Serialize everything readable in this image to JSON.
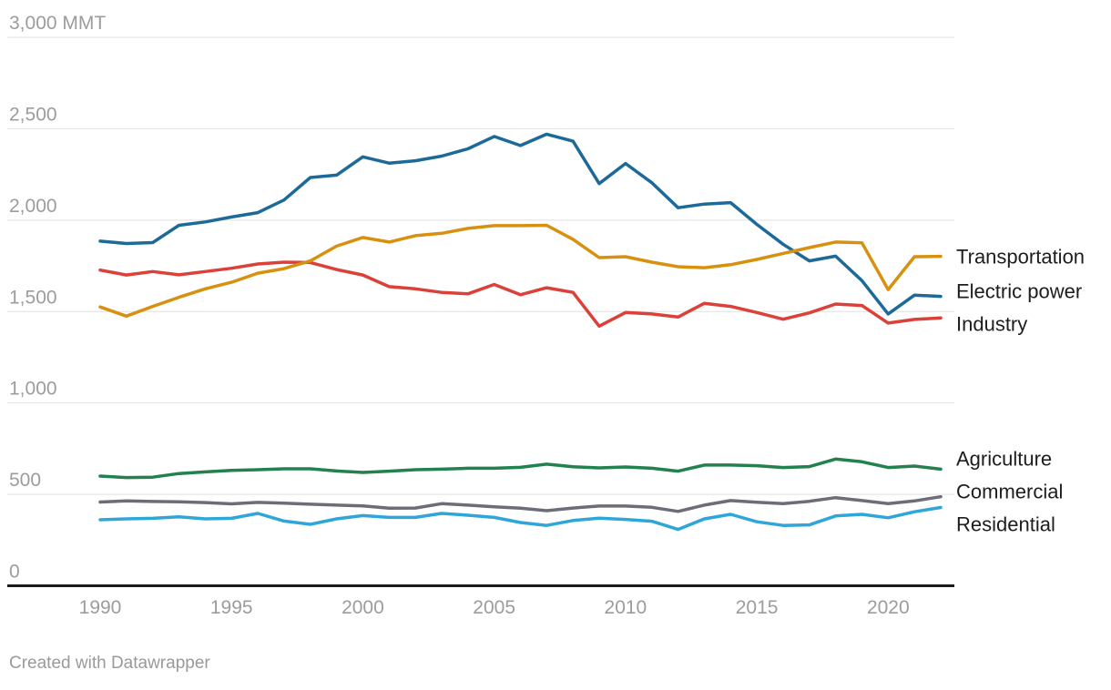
{
  "chart_data": {
    "type": "line",
    "title": "",
    "unit": "MMT",
    "grid": true,
    "legend_position": "right",
    "ylim": [
      0,
      3000
    ],
    "x": [
      1990,
      1991,
      1992,
      1993,
      1994,
      1995,
      1996,
      1997,
      1998,
      1999,
      2000,
      2001,
      2002,
      2003,
      2004,
      2005,
      2006,
      2007,
      2008,
      2009,
      2010,
      2011,
      2012,
      2013,
      2014,
      2015,
      2016,
      2017,
      2018,
      2019,
      2020,
      2021,
      2022
    ],
    "y_ticks": [
      {
        "value": 3000,
        "label": "3,000 MMT"
      },
      {
        "value": 2500,
        "label": "2,500"
      },
      {
        "value": 2000,
        "label": "2,000"
      },
      {
        "value": 1500,
        "label": "1,500"
      },
      {
        "value": 1000,
        "label": "1,000"
      },
      {
        "value": 500,
        "label": "500"
      },
      {
        "value": 0,
        "label": "0"
      }
    ],
    "x_ticks": [
      {
        "value": 1990,
        "label": "1990"
      },
      {
        "value": 1995,
        "label": "1995"
      },
      {
        "value": 2000,
        "label": "2000"
      },
      {
        "value": 2005,
        "label": "2005"
      },
      {
        "value": 2010,
        "label": "2010"
      },
      {
        "value": 2015,
        "label": "2015"
      },
      {
        "value": 2020,
        "label": "2020"
      }
    ],
    "series": [
      {
        "name": "Transportation",
        "color": "#d8900f",
        "values": [
          1525,
          1475,
          1528,
          1578,
          1624,
          1660,
          1710,
          1735,
          1777,
          1858,
          1905,
          1880,
          1915,
          1928,
          1955,
          1970,
          1970,
          1972,
          1895,
          1795,
          1800,
          1770,
          1745,
          1740,
          1756,
          1785,
          1818,
          1850,
          1880,
          1876,
          1620,
          1800,
          1802
        ]
      },
      {
        "name": "Electric power",
        "color": "#1d6a99",
        "values": [
          1885,
          1872,
          1877,
          1972,
          1990,
          2017,
          2041,
          2110,
          2233,
          2246,
          2346,
          2312,
          2325,
          2350,
          2390,
          2458,
          2408,
          2470,
          2432,
          2200,
          2310,
          2205,
          2068,
          2088,
          2096,
          1977,
          1868,
          1777,
          1803,
          1669,
          1487,
          1590,
          1583
        ]
      },
      {
        "name": "Industry",
        "color": "#db4138",
        "values": [
          1727,
          1700,
          1719,
          1701,
          1719,
          1737,
          1760,
          1770,
          1768,
          1730,
          1700,
          1636,
          1624,
          1605,
          1597,
          1648,
          1592,
          1630,
          1605,
          1420,
          1495,
          1487,
          1470,
          1545,
          1528,
          1495,
          1458,
          1493,
          1541,
          1533,
          1437,
          1457,
          1465
        ]
      },
      {
        "name": "Agriculture",
        "color": "#23814e",
        "values": [
          600,
          592,
          594,
          614,
          623,
          631,
          635,
          640,
          640,
          628,
          620,
          627,
          635,
          638,
          643,
          643,
          648,
          665,
          651,
          645,
          650,
          643,
          627,
          660,
          660,
          657,
          647,
          652,
          693,
          678,
          647,
          655,
          638
        ]
      },
      {
        "name": "Commercial",
        "color": "#6d6d77",
        "values": [
          458,
          464,
          461,
          459,
          455,
          448,
          456,
          452,
          446,
          441,
          437,
          424,
          425,
          449,
          441,
          432,
          424,
          411,
          425,
          436,
          436,
          429,
          407,
          441,
          466,
          457,
          449,
          462,
          482,
          466,
          449,
          464,
          487
        ]
      },
      {
        "name": "Residential",
        "color": "#2fa6da",
        "values": [
          361,
          366,
          369,
          377,
          366,
          369,
          396,
          354,
          336,
          366,
          384,
          374,
          374,
          396,
          386,
          374,
          346,
          330,
          357,
          370,
          363,
          353,
          308,
          366,
          391,
          350,
          330,
          333,
          382,
          391,
          372,
          405,
          428
        ]
      }
    ]
  },
  "footer": {
    "credit": "Created with Datawrapper"
  }
}
